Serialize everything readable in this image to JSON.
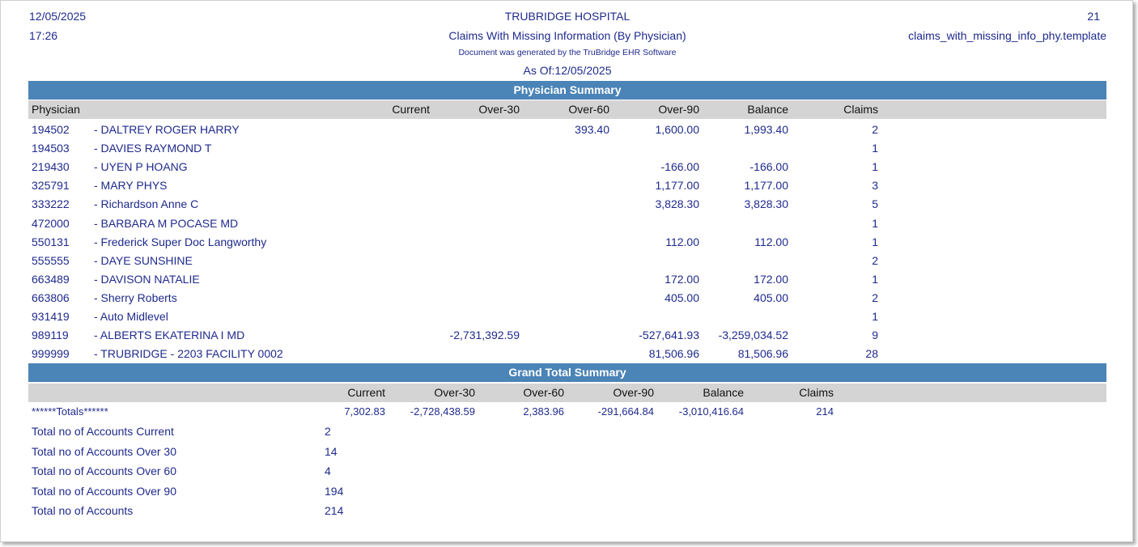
{
  "header": {
    "date": "12/05/2025",
    "time": "17:26",
    "hospital": "TRUBRIDGE HOSPITAL",
    "report_title": "Claims With Missing Information (By Physician)",
    "generated_note": "Document was generated by the TruBridge EHR Software",
    "as_of": "As Of:12/05/2025",
    "page_number": "21",
    "template": "claims_with_missing_info_phy.template"
  },
  "physician_summary": {
    "title": "Physician Summary",
    "columns": {
      "physician": "Physician",
      "current": "Current",
      "over30": "Over-30",
      "over60": "Over-60",
      "over90": "Over-90",
      "balance": "Balance",
      "claims": "Claims"
    },
    "rows": [
      {
        "id": "194502",
        "name": "- DALTREY ROGER HARRY",
        "current": "",
        "over30": "",
        "over60": "393.40",
        "over90": "1,600.00",
        "balance": "1,993.40",
        "claims": "2"
      },
      {
        "id": "194503",
        "name": "- DAVIES RAYMOND T",
        "current": "",
        "over30": "",
        "over60": "",
        "over90": "",
        "balance": "",
        "claims": "1"
      },
      {
        "id": "219430",
        "name": "- UYEN P HOANG",
        "current": "",
        "over30": "",
        "over60": "",
        "over90": "-166.00",
        "balance": "-166.00",
        "claims": "1"
      },
      {
        "id": "325791",
        "name": "- MARY PHYS",
        "current": "",
        "over30": "",
        "over60": "",
        "over90": "1,177.00",
        "balance": "1,177.00",
        "claims": "3"
      },
      {
        "id": "333222",
        "name": "- Richardson Anne C",
        "current": "",
        "over30": "",
        "over60": "",
        "over90": "3,828.30",
        "balance": "3,828.30",
        "claims": "5"
      },
      {
        "id": "472000",
        "name": "- BARBARA M POCASE MD",
        "current": "",
        "over30": "",
        "over60": "",
        "over90": "",
        "balance": "",
        "claims": "1"
      },
      {
        "id": "550131",
        "name": "- Frederick Super Doc Langworthy",
        "current": "",
        "over30": "",
        "over60": "",
        "over90": "112.00",
        "balance": "112.00",
        "claims": "1"
      },
      {
        "id": "555555",
        "name": "- DAYE SUNSHINE",
        "current": "",
        "over30": "",
        "over60": "",
        "over90": "",
        "balance": "",
        "claims": "2"
      },
      {
        "id": "663489",
        "name": "- DAVISON NATALIE",
        "current": "",
        "over30": "",
        "over60": "",
        "over90": "172.00",
        "balance": "172.00",
        "claims": "1"
      },
      {
        "id": "663806",
        "name": "- Sherry Roberts",
        "current": "",
        "over30": "",
        "over60": "",
        "over90": "405.00",
        "balance": "405.00",
        "claims": "2"
      },
      {
        "id": "931419",
        "name": "- Auto Midlevel",
        "current": "",
        "over30": "",
        "over60": "",
        "over90": "",
        "balance": "",
        "claims": "1"
      },
      {
        "id": "989119",
        "name": "- ALBERTS EKATERINA I MD",
        "current": "",
        "over30": "-2,731,392.59",
        "over60": "",
        "over90": "-527,641.93",
        "balance": "-3,259,034.52",
        "claims": "9"
      },
      {
        "id": "999999",
        "name": "- TRUBRIDGE - 2203 FACILITY 0002",
        "current": "",
        "over30": "",
        "over60": "",
        "over90": "81,506.96",
        "balance": "81,506.96",
        "claims": "28"
      }
    ]
  },
  "grand_total": {
    "title": "Grand Total Summary",
    "columns": {
      "current": "Current",
      "over30": "Over-30",
      "over60": "Over-60",
      "over90": "Over-90",
      "balance": "Balance",
      "claims": "Claims"
    },
    "totals": {
      "label": "******Totals******",
      "current": "7,302.83",
      "over30": "-2,728,438.59",
      "over60": "2,383.96",
      "over90": "-291,664.84",
      "balance": "-3,010,416.64",
      "claims": "214"
    },
    "account_counts": [
      {
        "label": "Total no of Accounts Current",
        "value": "2"
      },
      {
        "label": "Total no of Accounts Over 30",
        "value": "14"
      },
      {
        "label": "Total no of Accounts Over 60",
        "value": "4"
      },
      {
        "label": "Total no of Accounts Over 90",
        "value": "194"
      },
      {
        "label": "Total no of Accounts",
        "value": "214"
      }
    ]
  },
  "colors": {
    "text": "#1f2a8c",
    "section_bar": "#4b84b6",
    "column_header": "#d4d4d4"
  }
}
